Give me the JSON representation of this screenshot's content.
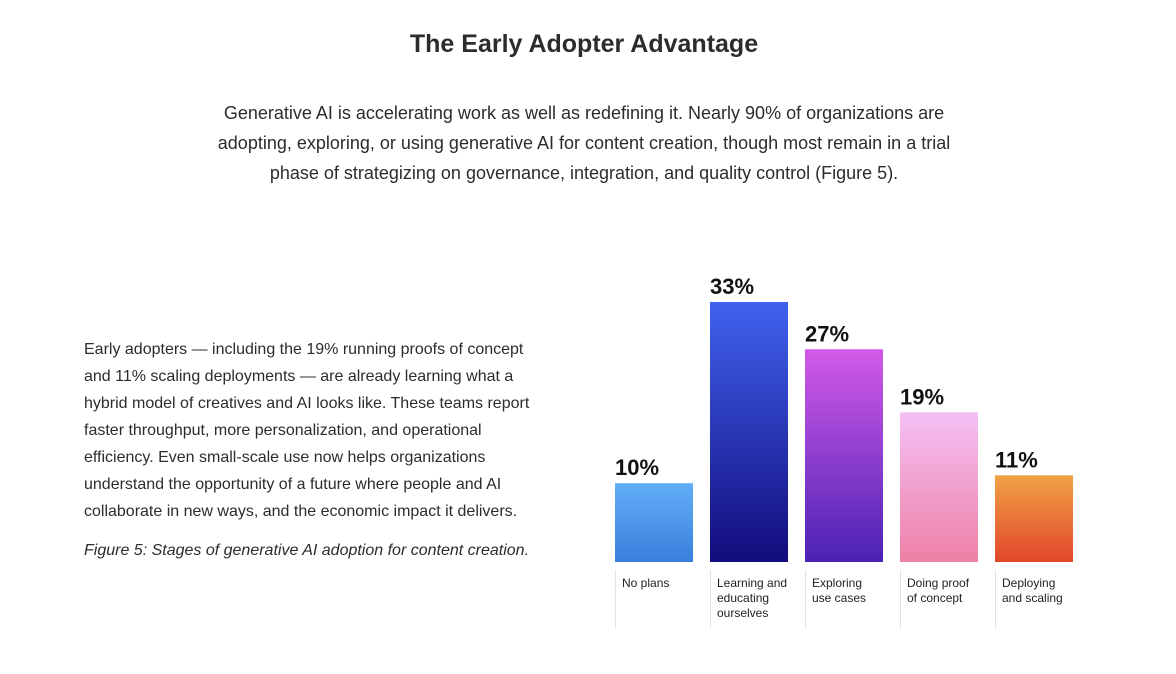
{
  "page": {
    "title": "The Early Adopter Advantage",
    "intro": "Generative AI is accelerating work as well as redefining it. Nearly 90% of organizations are adopting, exploring, or using generative AI for content creation, though most remain in a trial phase of strategizing on governance, integration, and quality control (Figure 5).",
    "body": "Early adopters — including the 19% running proofs of concept and 11% scaling deployments — are already learning what a hybrid model of creatives and AI looks like. These teams report faster throughput, more personalization, and operational efficiency. Even small-scale use now helps organizations understand the opportunity of a future where people and AI collaborate in new ways, and the economic impact it delivers.",
    "caption": "Figure 5: Stages of generative AI adoption for content creation."
  },
  "chart_data": {
    "type": "bar",
    "title": "",
    "xlabel": "",
    "ylabel": "",
    "ylim": [
      0,
      33
    ],
    "grid": false,
    "categories": [
      "No plans",
      "Learning and educating ourselves",
      "Exploring use cases",
      "Doing proof of concept",
      "Deploying and scaling"
    ],
    "category_lines": [
      [
        "No plans"
      ],
      [
        "Learning and",
        "educating",
        "ourselves"
      ],
      [
        "Exploring",
        "use cases"
      ],
      [
        "Doing proof",
        "of concept"
      ],
      [
        "Deploying",
        "and scaling"
      ]
    ],
    "values": [
      10,
      33,
      27,
      19,
      11
    ],
    "value_labels": [
      "10%",
      "33%",
      "27%",
      "19%",
      "11%"
    ],
    "bar_gradients": [
      {
        "top": "#62aef8",
        "bottom": "#3a7fdb"
      },
      {
        "top": "#4062ee",
        "bottom": "#120c7c"
      },
      {
        "top": "#d35ae8",
        "bottom": "#4a22b4"
      },
      {
        "top": "#f4c0f4",
        "bottom": "#ee80a6"
      },
      {
        "top": "#f1a146",
        "bottom": "#e1472a"
      }
    ]
  }
}
